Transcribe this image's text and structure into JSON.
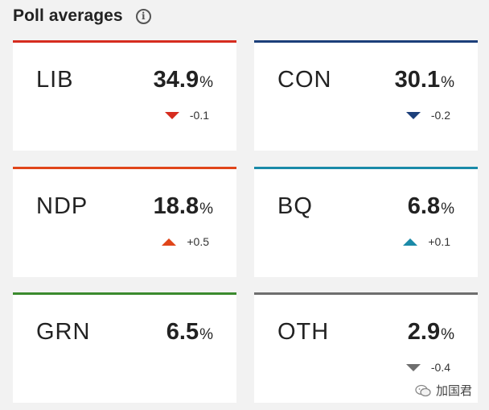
{
  "header": {
    "title": "Poll averages",
    "info_icon": "info-circle-icon"
  },
  "cards": [
    {
      "party": "LIB",
      "value": "34.9",
      "unit": "%",
      "change": "-0.1",
      "direction": "down",
      "color": "#d62c1f"
    },
    {
      "party": "CON",
      "value": "30.1",
      "unit": "%",
      "change": "-0.2",
      "direction": "down",
      "color": "#1c3f7a"
    },
    {
      "party": "NDP",
      "value": "18.8",
      "unit": "%",
      "change": "+0.5",
      "direction": "up",
      "color": "#e0451a"
    },
    {
      "party": "BQ",
      "value": "6.8",
      "unit": "%",
      "change": "+0.1",
      "direction": "up",
      "color": "#1a8aa8"
    },
    {
      "party": "GRN",
      "value": "6.5",
      "unit": "%",
      "change": "",
      "direction": "none",
      "color": "#3b8a2e"
    },
    {
      "party": "OTH",
      "value": "2.9",
      "unit": "%",
      "change": "-0.4",
      "direction": "down",
      "color": "#6e6e6e"
    }
  ],
  "watermark": {
    "text": "加国君",
    "icon": "wechat-logo-icon"
  }
}
